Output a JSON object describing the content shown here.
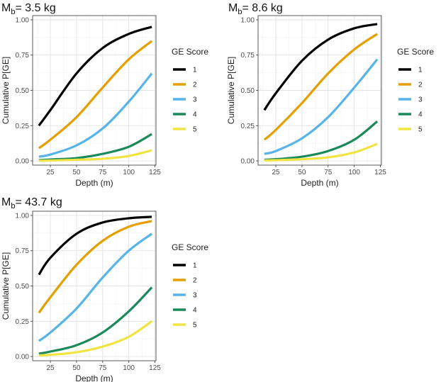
{
  "chart_data": [
    {
      "type": "line",
      "title_prefix": "M",
      "title_sub": "b",
      "title_value": "= 3.5 kg",
      "xlabel": "Depth (m)",
      "ylabel": "Cumulative P[GE]",
      "xlim": [
        8,
        126
      ],
      "ylim": [
        -0.03,
        1.03
      ],
      "x_ticks": [
        25,
        50,
        75,
        100,
        125
      ],
      "x_tick_labels": [
        "25",
        "50",
        "75",
        "100",
        "125"
      ],
      "y_ticks": [
        0,
        0.25,
        0.5,
        0.75,
        1.0
      ],
      "y_tick_labels": [
        "0.00",
        "0.25",
        "0.50",
        "0.75",
        "1.00"
      ],
      "grid": true,
      "legend_title": "GE Score",
      "legend_position": "right",
      "x": [
        14,
        25,
        50,
        75,
        100,
        122
      ],
      "series": [
        {
          "name": "1",
          "color": "#000000",
          "values": [
            0.25,
            0.36,
            0.62,
            0.8,
            0.9,
            0.95
          ]
        },
        {
          "name": "2",
          "color": "#E69F00",
          "values": [
            0.09,
            0.15,
            0.31,
            0.52,
            0.72,
            0.85
          ]
        },
        {
          "name": "3",
          "color": "#56B4E9",
          "values": [
            0.03,
            0.045,
            0.11,
            0.23,
            0.42,
            0.62
          ]
        },
        {
          "name": "4",
          "color": "#1B8A5A",
          "values": [
            0.005,
            0.01,
            0.02,
            0.05,
            0.1,
            0.19
          ]
        },
        {
          "name": "5",
          "color": "#F0E442",
          "values": [
            0.001,
            0.003,
            0.008,
            0.015,
            0.035,
            0.075
          ]
        }
      ]
    },
    {
      "type": "line",
      "title_prefix": "M",
      "title_sub": "b",
      "title_value": "= 8.6 kg",
      "xlabel": "Depth (m)",
      "ylabel": "Cumulative P[GE]",
      "xlim": [
        8,
        126
      ],
      "ylim": [
        -0.03,
        1.03
      ],
      "x_ticks": [
        25,
        50,
        75,
        100,
        125
      ],
      "x_tick_labels": [
        "25",
        "50",
        "75",
        "100",
        "125"
      ],
      "y_ticks": [
        0,
        0.25,
        0.5,
        0.75,
        1.0
      ],
      "y_tick_labels": [
        "0.00",
        "0.25",
        "0.50",
        "0.75",
        "1.00"
      ],
      "grid": true,
      "legend_title": "GE Score",
      "legend_position": "right",
      "x": [
        14,
        25,
        50,
        75,
        100,
        122
      ],
      "series": [
        {
          "name": "1",
          "color": "#000000",
          "values": [
            0.36,
            0.48,
            0.71,
            0.86,
            0.94,
            0.97
          ]
        },
        {
          "name": "2",
          "color": "#E69F00",
          "values": [
            0.15,
            0.22,
            0.41,
            0.62,
            0.79,
            0.9
          ]
        },
        {
          "name": "3",
          "color": "#56B4E9",
          "values": [
            0.05,
            0.07,
            0.16,
            0.31,
            0.52,
            0.72
          ]
        },
        {
          "name": "4",
          "color": "#1B8A5A",
          "values": [
            0.008,
            0.012,
            0.03,
            0.07,
            0.15,
            0.28
          ]
        },
        {
          "name": "5",
          "color": "#F0E442",
          "values": [
            0.003,
            0.005,
            0.012,
            0.025,
            0.06,
            0.12
          ]
        }
      ]
    },
    {
      "type": "line",
      "title_prefix": "M",
      "title_sub": "b",
      "title_value": "= 43.7 kg",
      "xlabel": "Depth (m)",
      "ylabel": "Cumulative P[GE]",
      "xlim": [
        8,
        126
      ],
      "ylim": [
        -0.03,
        1.03
      ],
      "x_ticks": [
        25,
        50,
        75,
        100,
        125
      ],
      "x_tick_labels": [
        "25",
        "50",
        "75",
        "100",
        "125"
      ],
      "y_ticks": [
        0,
        0.25,
        0.5,
        0.75,
        1.0
      ],
      "y_tick_labels": [
        "0.00",
        "0.25",
        "0.50",
        "0.75",
        "1.00"
      ],
      "grid": true,
      "legend_title": "GE Score",
      "legend_position": "right",
      "x": [
        14,
        25,
        50,
        75,
        100,
        122
      ],
      "series": [
        {
          "name": "1",
          "color": "#000000",
          "values": [
            0.58,
            0.7,
            0.87,
            0.95,
            0.98,
            0.99
          ]
        },
        {
          "name": "2",
          "color": "#E69F00",
          "values": [
            0.31,
            0.42,
            0.65,
            0.82,
            0.92,
            0.96
          ]
        },
        {
          "name": "3",
          "color": "#56B4E9",
          "values": [
            0.11,
            0.17,
            0.34,
            0.56,
            0.75,
            0.87
          ]
        },
        {
          "name": "4",
          "color": "#1B8A5A",
          "values": [
            0.02,
            0.035,
            0.08,
            0.17,
            0.32,
            0.49
          ]
        },
        {
          "name": "5",
          "color": "#F0E442",
          "values": [
            0.008,
            0.012,
            0.03,
            0.07,
            0.14,
            0.25
          ]
        }
      ]
    }
  ]
}
